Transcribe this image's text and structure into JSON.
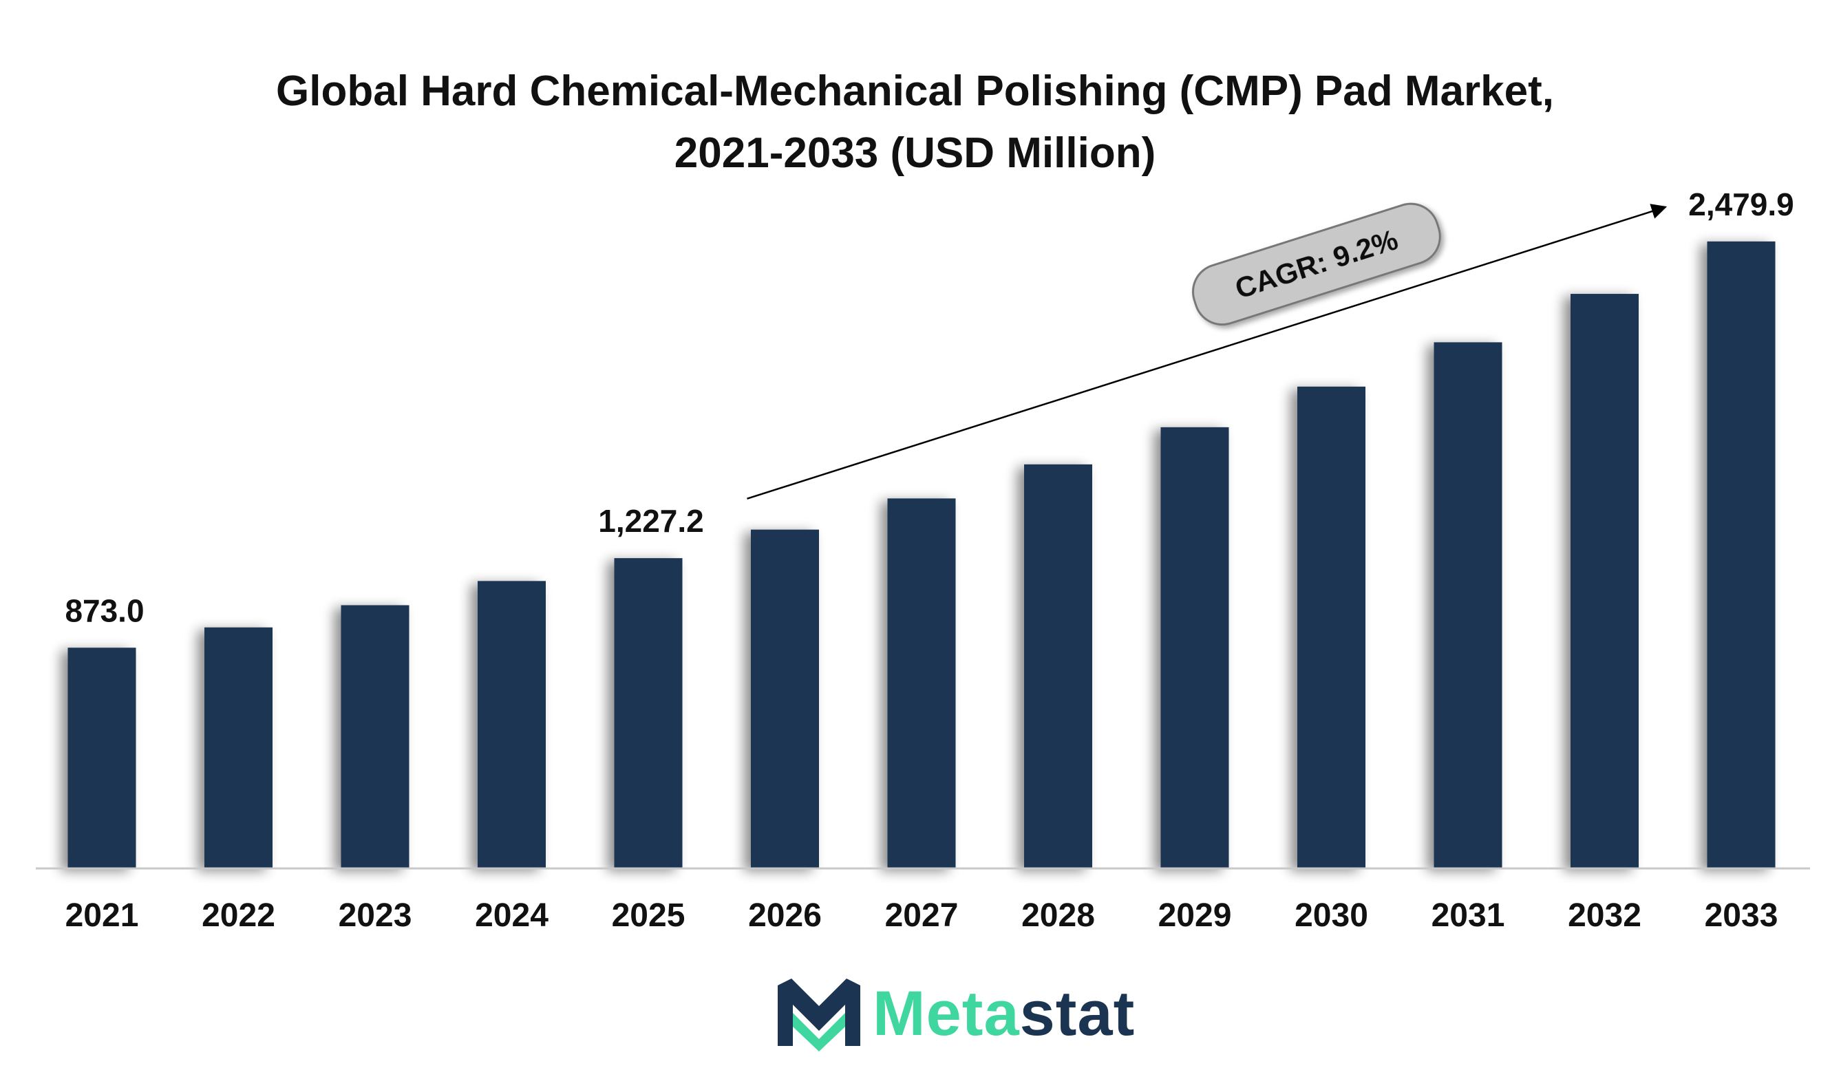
{
  "chart_data": {
    "type": "bar",
    "title": "Global Hard Chemical-Mechanical Polishing (CMP) Pad Market, 2021-2033 (USD Million)",
    "title_lines": [
      "Global Hard Chemical-Mechanical Polishing (CMP) Pad Market,",
      "2021-2033 (USD Million)"
    ],
    "xlabel": "",
    "ylabel": "",
    "categories": [
      "2021",
      "2022",
      "2023",
      "2024",
      "2025",
      "2026",
      "2027",
      "2028",
      "2029",
      "2030",
      "2031",
      "2032",
      "2033"
    ],
    "values": [
      873.0,
      953.3,
      1041.1,
      1136.8,
      1227.2,
      1340.1,
      1463.4,
      1598.1,
      1745.1,
      1905.7,
      2081.0,
      2272.5,
      2479.9
    ],
    "data_labels": [
      {
        "category": "2021",
        "text": "873.0"
      },
      {
        "category": "2025",
        "text": "1,227.2"
      },
      {
        "category": "2033",
        "text": "2,479.9"
      }
    ],
    "annotation": {
      "text": "CAGR: 9.2%",
      "from": "2026",
      "to": "2033"
    },
    "ylim": [
      0,
      2700
    ],
    "grid": false,
    "legend": "none",
    "bar_color": "#1b3452"
  },
  "logo": {
    "text_part1": "Meta",
    "text_part2": "stat",
    "color_accent": "#3fd6a0",
    "color_dark": "#1b3452"
  }
}
